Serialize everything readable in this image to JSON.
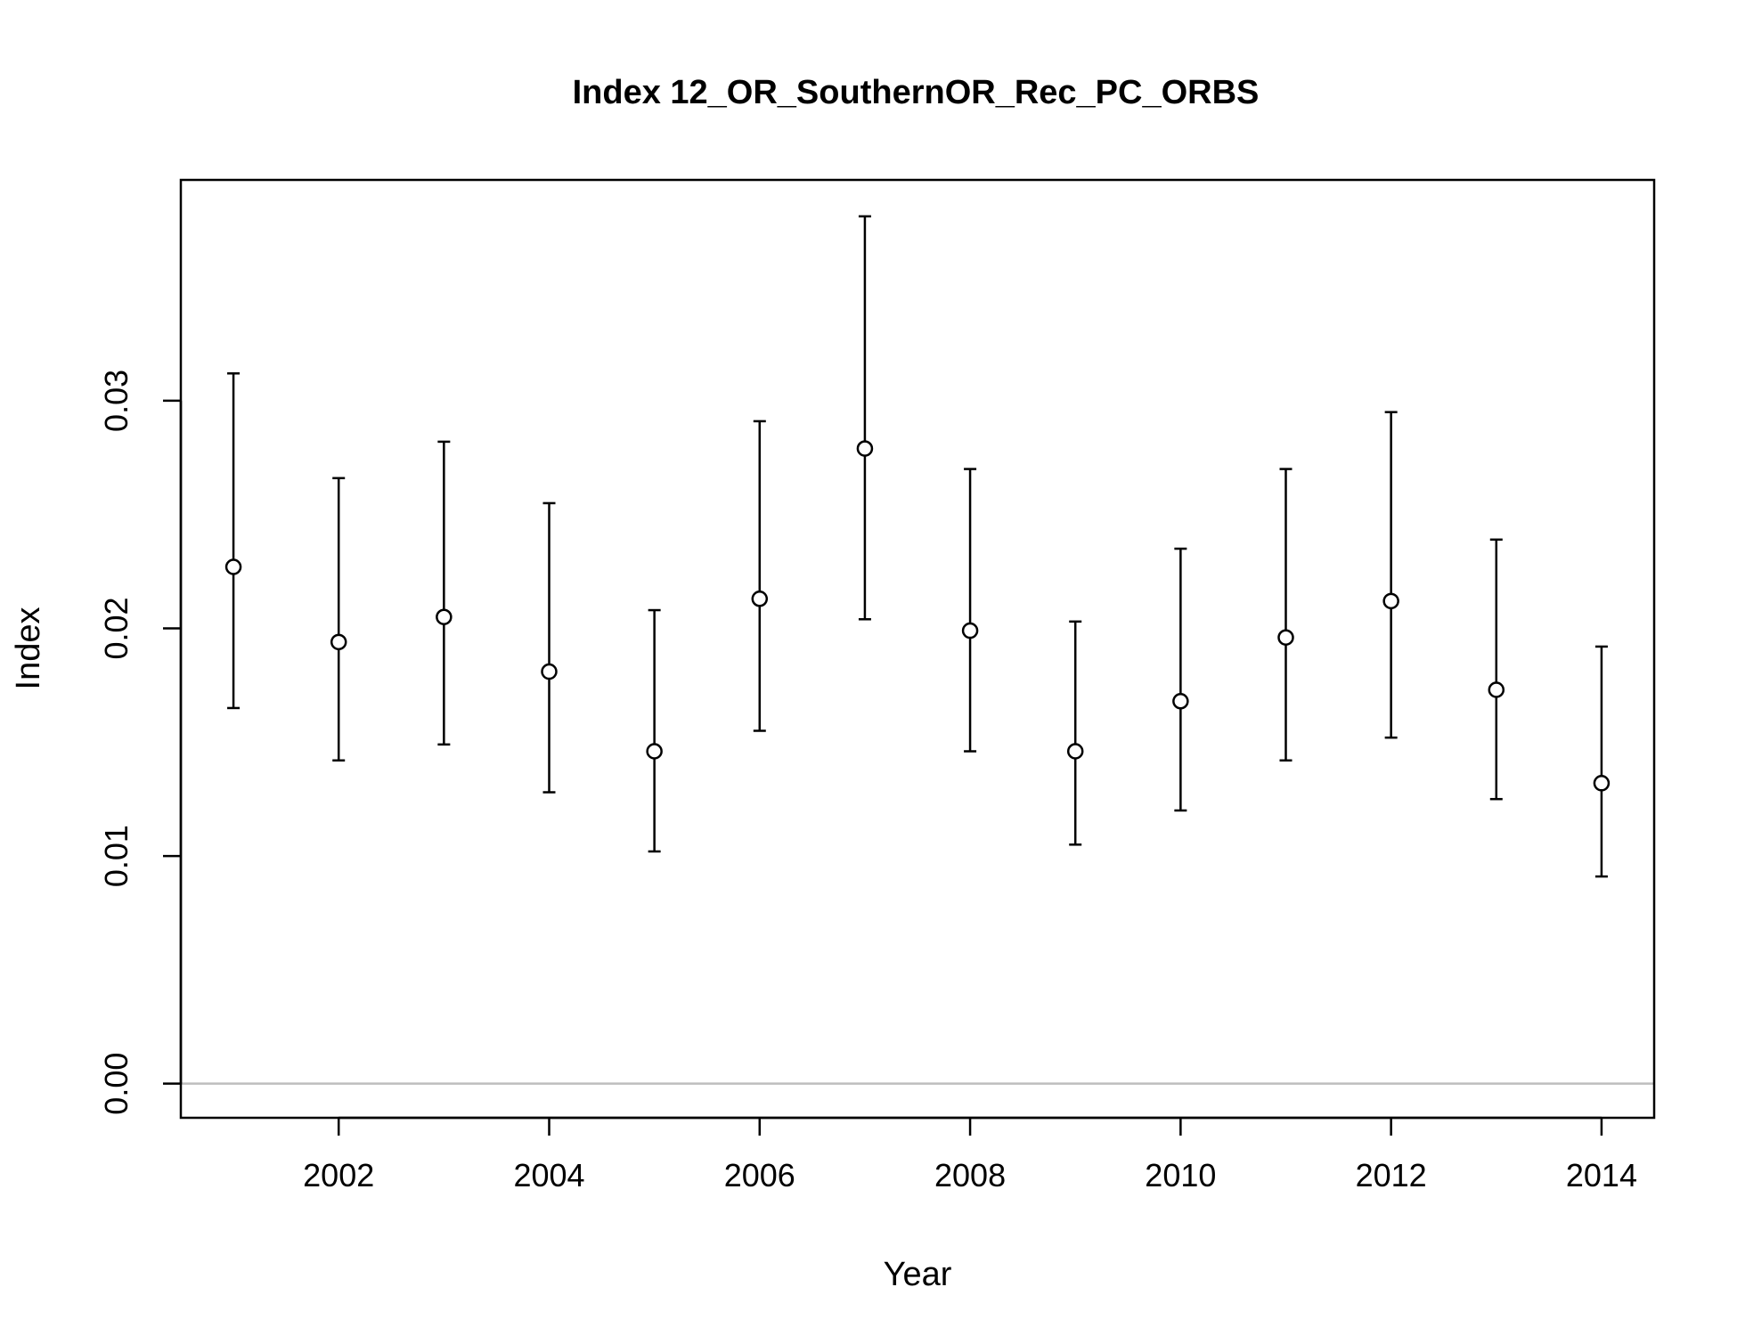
{
  "chart_data": {
    "type": "scatter",
    "title": "Index 12_OR_SouthernOR_Rec_PC_ORBS",
    "xlabel": "Year",
    "ylabel": "Index",
    "xlim": [
      2000.5,
      2014.5
    ],
    "ylim": [
      -0.0015,
      0.0397
    ],
    "x_ticks": [
      2002,
      2004,
      2006,
      2008,
      2010,
      2012,
      2014
    ],
    "y_ticks": [
      0.0,
      0.01,
      0.02,
      0.03
    ],
    "y_tick_labels": [
      "0.00",
      "0.01",
      "0.02",
      "0.03"
    ],
    "reference_line": {
      "y": 0,
      "color": "#bebebe"
    },
    "point_color": "#000000",
    "grid": false,
    "legend": "none",
    "series": [
      {
        "x": [
          2001,
          2002,
          2003,
          2004,
          2005,
          2006,
          2007,
          2008,
          2009,
          2010,
          2011,
          2012,
          2013,
          2014
        ],
        "values": [
          0.0227,
          0.0194,
          0.0205,
          0.0181,
          0.0146,
          0.0213,
          0.0279,
          0.0199,
          0.0146,
          0.0168,
          0.0196,
          0.0212,
          0.0173,
          0.0132
        ],
        "lower": [
          0.0165,
          0.0142,
          0.0149,
          0.0128,
          0.0102,
          0.0155,
          0.0204,
          0.0146,
          0.0105,
          0.012,
          0.0142,
          0.0152,
          0.0125,
          0.0091
        ],
        "upper": [
          0.0312,
          0.0266,
          0.0282,
          0.0255,
          0.0208,
          0.0291,
          0.0381,
          0.027,
          0.0203,
          0.0235,
          0.027,
          0.0295,
          0.0239,
          0.0192
        ]
      }
    ]
  }
}
